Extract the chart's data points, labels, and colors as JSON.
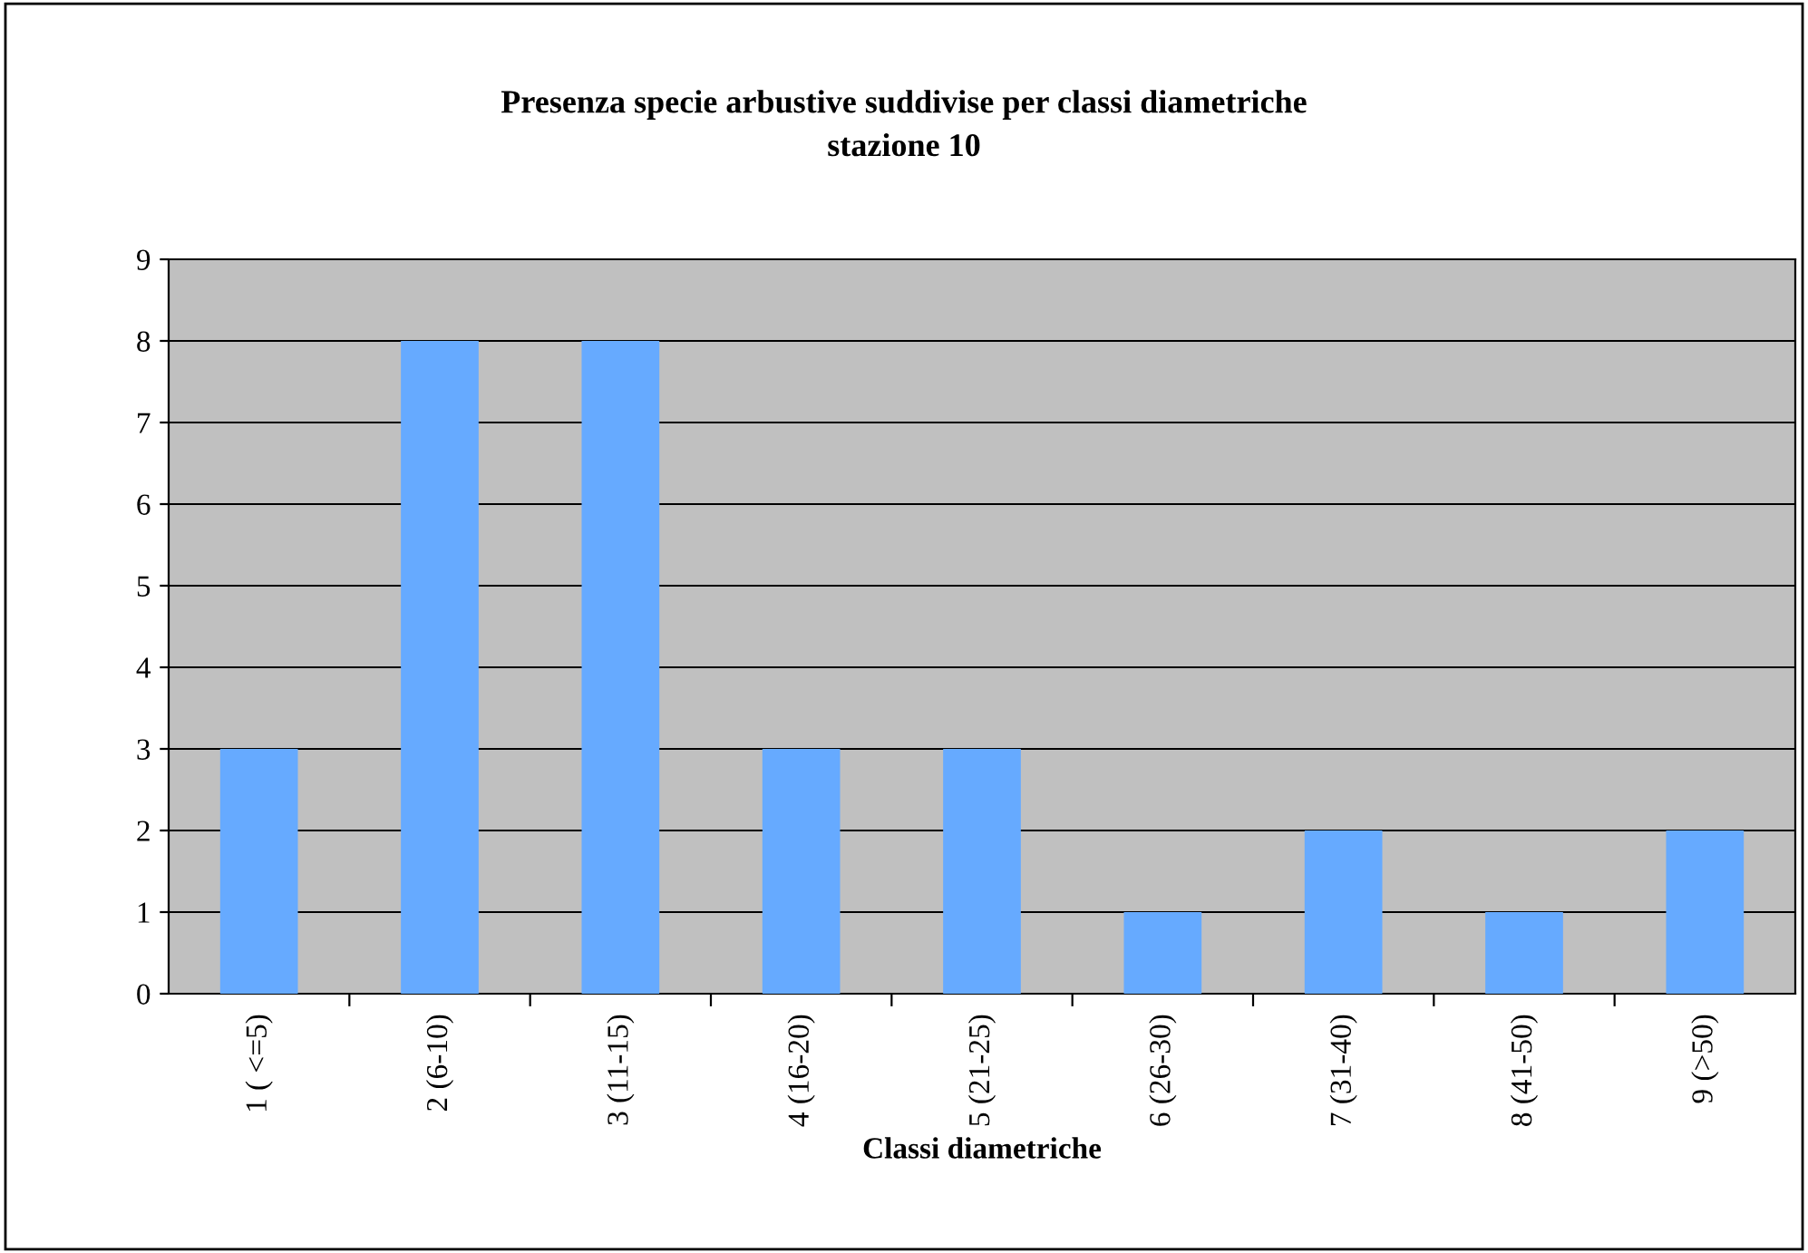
{
  "chart_data": {
    "type": "bar",
    "title": "Presenza specie arbustive suddivise per classi diametriche\nstazione 10",
    "xlabel": "Classi diametriche",
    "categories": [
      "1 ( <=5)",
      "2 (6-10)",
      "3 (11-15)",
      "4 (16-20)",
      "5 (21-25)",
      "6 (26-30)",
      "7 (31-40)",
      "8 (41-50)",
      "9 (>50)"
    ],
    "values": [
      3,
      8,
      8,
      3,
      3,
      1,
      2,
      1,
      2
    ],
    "color": "#66aaff",
    "ylim": [
      0,
      9
    ],
    "yticks": [
      0,
      1,
      2,
      3,
      4,
      5,
      6,
      7,
      8,
      9
    ],
    "grid": "y"
  }
}
